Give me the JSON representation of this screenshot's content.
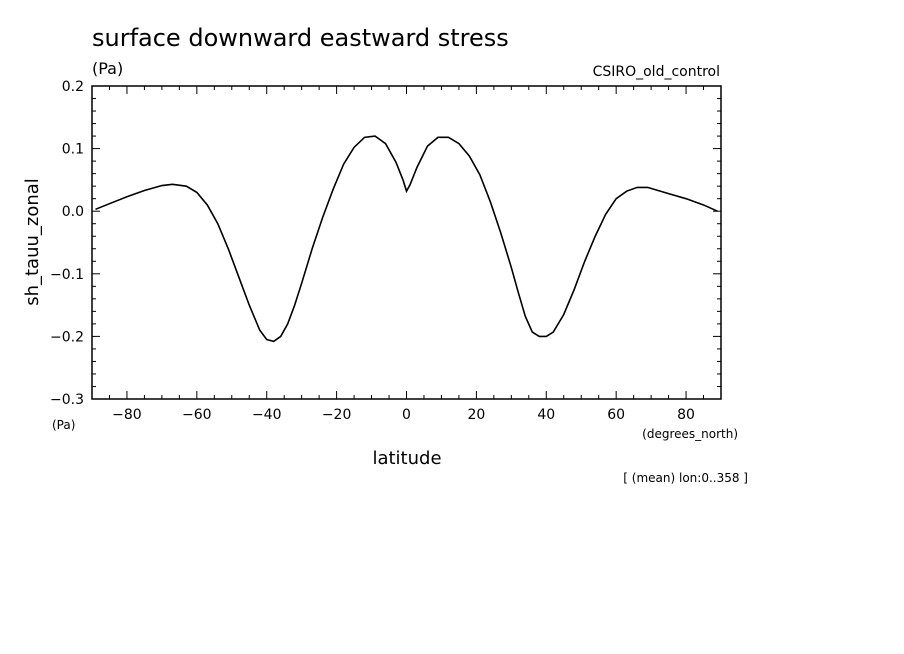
{
  "chart_data": {
    "type": "line",
    "title": "surface downward eastward stress",
    "subtitle": "(Pa)",
    "model_label": "CSIRO_old_control",
    "xlabel": "latitude",
    "x_units": "(degrees_north)",
    "ylabel": "sh_tauu_zonal",
    "y_units": "(Pa)",
    "footnote": "[ (mean) lon:0..358 ]",
    "xlim": [
      -90,
      90
    ],
    "ylim": [
      -0.3,
      0.2
    ],
    "x_ticks": [
      -80,
      -60,
      -40,
      -20,
      0,
      20,
      40,
      60,
      80
    ],
    "y_ticks": [
      -0.3,
      -0.2,
      -0.1,
      0.0,
      0.1,
      0.2
    ],
    "x_tick_labels": [
      "−80",
      "−60",
      "−40",
      "−20",
      "0",
      "20",
      "40",
      "60",
      "80"
    ],
    "y_tick_labels": [
      "−0.3",
      "−0.2",
      "−0.1",
      "0.0",
      "0.1",
      "0.2"
    ],
    "grid": false,
    "series": [
      {
        "color": "#000000",
        "x": [
          -89,
          -85,
          -80,
          -75,
          -70,
          -67,
          -63,
          -60,
          -57,
          -54,
          -51,
          -48,
          -45,
          -42,
          -40,
          -38,
          -36,
          -34,
          -32,
          -30,
          -27,
          -24,
          -21,
          -18,
          -15,
          -12,
          -9,
          -6,
          -3,
          -1,
          0,
          1,
          3,
          6,
          9,
          12,
          15,
          18,
          21,
          24,
          27,
          30,
          32,
          34,
          36,
          38,
          40,
          42,
          45,
          48,
          51,
          54,
          57,
          60,
          63,
          66,
          69,
          72,
          75,
          80,
          85,
          89
        ],
        "y": [
          0.003,
          0.012,
          0.023,
          0.033,
          0.041,
          0.043,
          0.04,
          0.03,
          0.01,
          -0.02,
          -0.06,
          -0.105,
          -0.15,
          -0.19,
          -0.205,
          -0.208,
          -0.2,
          -0.18,
          -0.15,
          -0.115,
          -0.06,
          -0.01,
          0.035,
          0.075,
          0.102,
          0.118,
          0.12,
          0.108,
          0.078,
          0.05,
          0.032,
          0.042,
          0.07,
          0.104,
          0.118,
          0.118,
          0.108,
          0.088,
          0.058,
          0.015,
          -0.035,
          -0.09,
          -0.13,
          -0.168,
          -0.193,
          -0.2,
          -0.2,
          -0.193,
          -0.165,
          -0.125,
          -0.08,
          -0.04,
          -0.005,
          0.02,
          0.032,
          0.038,
          0.038,
          0.033,
          0.028,
          0.02,
          0.01,
          0.0
        ]
      }
    ]
  }
}
